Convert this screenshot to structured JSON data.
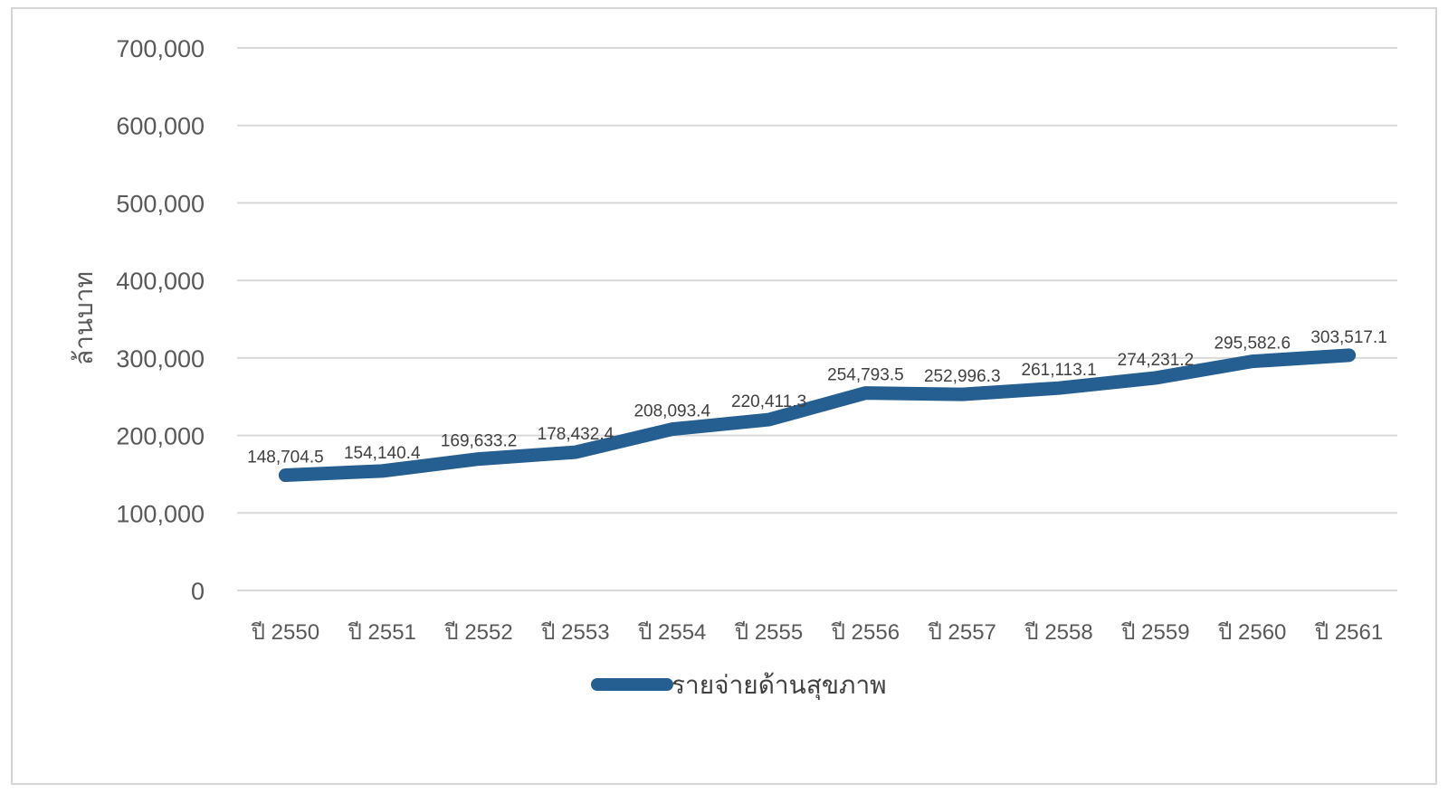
{
  "chart_data": {
    "type": "line",
    "ylabel": "ล้านบาท",
    "ylim": [
      0,
      700000
    ],
    "yticks": [
      "0",
      "100,000",
      "200,000",
      "300,000",
      "400,000",
      "500,000",
      "600,000",
      "700,000"
    ],
    "categories": [
      "ปี 2550",
      "ปี 2551",
      "ปี 2552",
      "ปี 2553",
      "ปี 2554",
      "ปี 2555",
      "ปี 2556",
      "ปี 2557",
      "ปี 2558",
      "ปี 2559",
      "ปี 2560",
      "ปี 2561"
    ],
    "series": [
      {
        "name": "รายจ่ายด้านสุขภาพ",
        "color": "#255e91",
        "values": [
          148704.5,
          154140.4,
          169633.2,
          178432.4,
          208093.4,
          220411.3,
          254793.5,
          252996.3,
          261113.1,
          274231.2,
          295582.6,
          303517.1
        ],
        "labels": [
          "148,704.5",
          "154,140.4",
          "169,633.2",
          "178,432.4",
          "208,093.4",
          "220,411.3",
          "254,793.5",
          "252,996.3",
          "261,113.1",
          "274,231.2",
          "295,582.6",
          "303,517.1"
        ]
      }
    ],
    "grid": true,
    "legend": "bottom"
  }
}
